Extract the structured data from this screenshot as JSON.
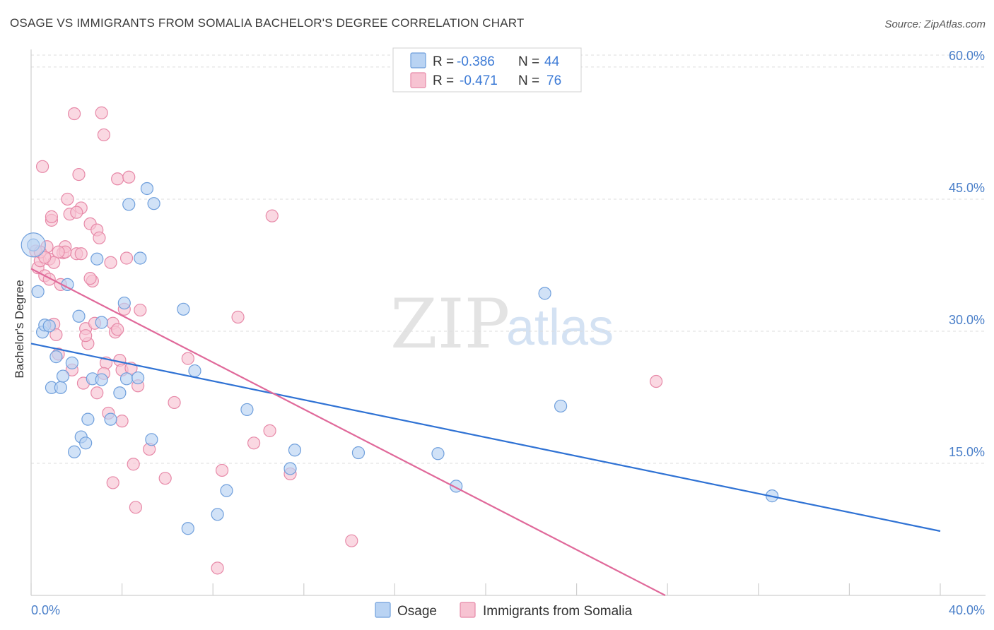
{
  "title": "OSAGE VS IMMIGRANTS FROM SOMALIA BACHELOR'S DEGREE CORRELATION CHART",
  "source": "Source: ZipAtlas.com",
  "watermark": {
    "zip": "ZIP",
    "atlas": "atlas"
  },
  "colors": {
    "osage_fill": "#b9d3f3",
    "osage_stroke": "#6f9fdc",
    "osage_line": "#2f72d4",
    "somalia_fill": "#f7c3d2",
    "somalia_stroke": "#e789a8",
    "somalia_line": "#e0699a",
    "grid": "#dcdcdc",
    "tick_text": "#4a7fc9"
  },
  "legend": {
    "rows": [
      {
        "r_label": "R =",
        "r_value": "-0.386",
        "n_label": "N =",
        "n_value": "44"
      },
      {
        "r_label": "R =",
        "r_value": "-0.471",
        "n_label": "N =",
        "n_value": "76"
      }
    ]
  },
  "chart_data": {
    "type": "scatter",
    "title": "OSAGE VS IMMIGRANTS FROM SOMALIA BACHELOR'S DEGREE CORRELATION CHART",
    "xlabel": "",
    "ylabel": "Bachelor's Degree",
    "xlim": [
      0,
      40
    ],
    "ylim": [
      0,
      62
    ],
    "x_tick_labels": [
      "0.0%",
      "40.0%"
    ],
    "y_ticks": [
      15,
      30,
      45,
      60
    ],
    "y_tick_labels": [
      "15.0%",
      "30.0%",
      "45.0%",
      "60.0%"
    ],
    "grid": true,
    "legend_position": "top-center",
    "series": [
      {
        "name": "Osage",
        "r": -0.386,
        "n": 44,
        "trend": {
          "x": [
            0,
            40
          ],
          "y": [
            28.6,
            7.3
          ]
        },
        "points": [
          [
            0.1,
            39.8
          ],
          [
            0.3,
            34.5
          ],
          [
            0.5,
            29.9
          ],
          [
            0.6,
            30.7
          ],
          [
            0.8,
            30.6
          ],
          [
            0.9,
            23.6
          ],
          [
            1.1,
            27.1
          ],
          [
            1.3,
            23.6
          ],
          [
            1.4,
            24.9
          ],
          [
            1.6,
            35.3
          ],
          [
            1.8,
            26.4
          ],
          [
            1.9,
            16.3
          ],
          [
            2.1,
            31.7
          ],
          [
            2.2,
            18.0
          ],
          [
            2.4,
            17.3
          ],
          [
            2.5,
            20.0
          ],
          [
            2.7,
            24.6
          ],
          [
            2.9,
            38.2
          ],
          [
            3.1,
            24.5
          ],
          [
            3.1,
            31.0
          ],
          [
            3.5,
            20.0
          ],
          [
            3.9,
            23.0
          ],
          [
            4.1,
            33.2
          ],
          [
            4.2,
            24.6
          ],
          [
            4.3,
            44.4
          ],
          [
            4.7,
            24.7
          ],
          [
            4.8,
            38.3
          ],
          [
            5.1,
            46.2
          ],
          [
            5.3,
            17.7
          ],
          [
            5.4,
            44.5
          ],
          [
            6.7,
            32.5
          ],
          [
            6.9,
            7.6
          ],
          [
            7.2,
            25.5
          ],
          [
            8.2,
            9.2
          ],
          [
            8.6,
            11.9
          ],
          [
            9.5,
            21.1
          ],
          [
            11.4,
            14.4
          ],
          [
            11.6,
            16.5
          ],
          [
            14.4,
            16.2
          ],
          [
            17.9,
            16.1
          ],
          [
            18.7,
            12.4
          ],
          [
            22.6,
            34.3
          ],
          [
            23.3,
            21.5
          ],
          [
            32.6,
            11.3
          ]
        ]
      },
      {
        "name": "Immigrants from Somalia",
        "r": -0.471,
        "n": 76,
        "trend": {
          "x": [
            0,
            27.9
          ],
          "y": [
            37.1,
            0
          ]
        },
        "points": [
          [
            0.2,
            39.1
          ],
          [
            0.3,
            37.2
          ],
          [
            0.4,
            38.0
          ],
          [
            0.5,
            48.7
          ],
          [
            0.6,
            36.3
          ],
          [
            0.7,
            39.6
          ],
          [
            0.8,
            38.2
          ],
          [
            0.8,
            35.9
          ],
          [
            0.9,
            42.6
          ],
          [
            1.0,
            30.8
          ],
          [
            1.1,
            29.6
          ],
          [
            1.2,
            27.4
          ],
          [
            1.3,
            35.3
          ],
          [
            1.4,
            38.9
          ],
          [
            1.5,
            39.6
          ],
          [
            1.6,
            45.0
          ],
          [
            1.7,
            43.3
          ],
          [
            1.8,
            25.6
          ],
          [
            1.9,
            54.7
          ],
          [
            2.0,
            38.8
          ],
          [
            2.1,
            47.8
          ],
          [
            2.2,
            38.8
          ],
          [
            2.3,
            24.1
          ],
          [
            2.4,
            30.3
          ],
          [
            2.5,
            28.6
          ],
          [
            2.6,
            42.2
          ],
          [
            2.7,
            35.7
          ],
          [
            2.8,
            30.9
          ],
          [
            2.9,
            41.5
          ],
          [
            3.0,
            40.6
          ],
          [
            3.1,
            54.8
          ],
          [
            3.2,
            52.3
          ],
          [
            3.3,
            26.4
          ],
          [
            3.4,
            20.7
          ],
          [
            3.5,
            37.8
          ],
          [
            3.6,
            30.9
          ],
          [
            3.7,
            29.9
          ],
          [
            3.8,
            47.3
          ],
          [
            3.9,
            26.7
          ],
          [
            4.0,
            25.6
          ],
          [
            4.1,
            32.5
          ],
          [
            4.2,
            38.3
          ],
          [
            4.3,
            47.5
          ],
          [
            4.4,
            25.8
          ],
          [
            4.5,
            14.9
          ],
          [
            4.6,
            10.0
          ],
          [
            4.7,
            23.8
          ],
          [
            4.8,
            32.4
          ],
          [
            5.2,
            16.6
          ],
          [
            5.9,
            13.3
          ],
          [
            6.3,
            21.9
          ],
          [
            6.9,
            26.9
          ],
          [
            8.2,
            3.1
          ],
          [
            8.4,
            14.2
          ],
          [
            9.1,
            31.6
          ],
          [
            9.8,
            17.3
          ],
          [
            10.5,
            18.7
          ],
          [
            10.6,
            43.1
          ],
          [
            11.4,
            13.8
          ],
          [
            14.1,
            6.2
          ],
          [
            27.5,
            24.3
          ],
          [
            0.4,
            39.0
          ],
          [
            1.5,
            39.0
          ],
          [
            2.9,
            23.0
          ],
          [
            3.2,
            25.2
          ],
          [
            3.6,
            12.8
          ],
          [
            4.0,
            19.8
          ],
          [
            2.4,
            29.5
          ],
          [
            1.2,
            39.0
          ],
          [
            0.9,
            43.0
          ],
          [
            2.2,
            44.0
          ],
          [
            2.6,
            36.0
          ],
          [
            3.8,
            30.2
          ],
          [
            1.0,
            37.8
          ],
          [
            2.0,
            43.5
          ],
          [
            0.6,
            38.4
          ]
        ]
      }
    ]
  }
}
